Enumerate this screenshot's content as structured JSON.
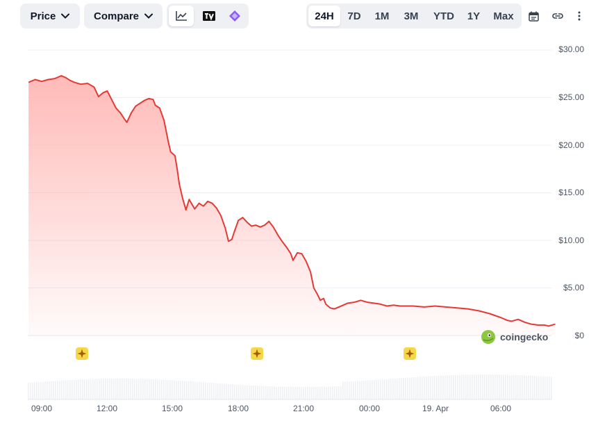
{
  "toolbar": {
    "price_label": "Price",
    "compare_label": "Compare",
    "chart_modes": [
      "line-chart-icon",
      "tradingview-icon",
      "candlestick-icon"
    ],
    "ranges": [
      "24H",
      "7D",
      "1M",
      "3M",
      "YTD",
      "1Y",
      "Max"
    ],
    "active_range": "24H",
    "extra_icons": [
      "calendar-icon",
      "link-icon",
      "more-options-icon"
    ]
  },
  "watermark": "coingecko",
  "colors": {
    "line": "#e53935",
    "fill_top": "#ffb3b0",
    "grid": "#eceff3",
    "event_marker": "#f7d74a"
  },
  "chart_data": {
    "type": "area",
    "title": "",
    "xlabel": "",
    "ylabel": "",
    "y_ticks": [
      "$30.00",
      "$25.00",
      "$20.00",
      "$15.00",
      "$10.00",
      "$5.00",
      "$0"
    ],
    "y_tick_values": [
      30,
      25,
      20,
      15,
      10,
      5,
      0
    ],
    "ylim": [
      0,
      30
    ],
    "x_ticks": [
      "09:00",
      "12:00",
      "15:00",
      "18:00",
      "21:00",
      "00:00",
      "19. Apr",
      "06:00"
    ],
    "x_tick_hours": [
      0,
      3,
      6,
      9,
      12,
      15,
      18,
      21
    ],
    "x_range_hours": [
      -0.6,
      23.5
    ],
    "x_unit": "hours from 09:00",
    "grid": true,
    "legend": "none",
    "series": [
      {
        "values": [
          [
            -0.6,
            26.6
          ],
          [
            -0.3,
            26.9
          ],
          [
            0.0,
            26.7
          ],
          [
            0.3,
            26.9
          ],
          [
            0.6,
            27.0
          ],
          [
            0.9,
            27.3
          ],
          [
            1.1,
            27.1
          ],
          [
            1.3,
            26.8
          ],
          [
            1.5,
            26.6
          ],
          [
            1.8,
            26.4
          ],
          [
            2.1,
            26.5
          ],
          [
            2.4,
            26.1
          ],
          [
            2.6,
            25.1
          ],
          [
            2.8,
            25.5
          ],
          [
            3.0,
            25.7
          ],
          [
            3.2,
            24.8
          ],
          [
            3.4,
            23.9
          ],
          [
            3.6,
            23.4
          ],
          [
            3.8,
            22.7
          ],
          [
            3.9,
            22.4
          ],
          [
            4.1,
            23.4
          ],
          [
            4.3,
            24.1
          ],
          [
            4.5,
            24.4
          ],
          [
            4.7,
            24.7
          ],
          [
            4.9,
            24.9
          ],
          [
            5.1,
            24.8
          ],
          [
            5.2,
            24.2
          ],
          [
            5.4,
            23.9
          ],
          [
            5.6,
            22.6
          ],
          [
            5.8,
            20.3
          ],
          [
            5.9,
            19.3
          ],
          [
            6.1,
            18.9
          ],
          [
            6.2,
            17.5
          ],
          [
            6.3,
            15.9
          ],
          [
            6.45,
            14.4
          ],
          [
            6.6,
            13.2
          ],
          [
            6.75,
            14.3
          ],
          [
            6.9,
            13.7
          ],
          [
            7.0,
            13.3
          ],
          [
            7.2,
            13.9
          ],
          [
            7.4,
            13.6
          ],
          [
            7.6,
            14.1
          ],
          [
            7.8,
            13.9
          ],
          [
            8.0,
            13.4
          ],
          [
            8.2,
            12.6
          ],
          [
            8.4,
            11.3
          ],
          [
            8.55,
            9.9
          ],
          [
            8.7,
            10.1
          ],
          [
            8.8,
            10.8
          ],
          [
            9.0,
            12.1
          ],
          [
            9.2,
            12.4
          ],
          [
            9.4,
            11.9
          ],
          [
            9.6,
            11.5
          ],
          [
            9.8,
            11.6
          ],
          [
            10.0,
            11.4
          ],
          [
            10.2,
            11.6
          ],
          [
            10.4,
            12.0
          ],
          [
            10.6,
            11.4
          ],
          [
            10.8,
            10.6
          ],
          [
            11.0,
            9.9
          ],
          [
            11.2,
            9.3
          ],
          [
            11.4,
            8.6
          ],
          [
            11.5,
            7.9
          ],
          [
            11.7,
            8.7
          ],
          [
            11.9,
            8.6
          ],
          [
            12.1,
            7.8
          ],
          [
            12.3,
            6.7
          ],
          [
            12.45,
            5.0
          ],
          [
            12.6,
            4.4
          ],
          [
            12.75,
            3.7
          ],
          [
            12.9,
            3.9
          ],
          [
            13.0,
            3.3
          ],
          [
            13.2,
            2.9
          ],
          [
            13.4,
            2.8
          ],
          [
            13.6,
            3.0
          ],
          [
            13.8,
            3.2
          ],
          [
            14.0,
            3.4
          ],
          [
            14.3,
            3.5
          ],
          [
            14.6,
            3.7
          ],
          [
            14.9,
            3.5
          ],
          [
            15.2,
            3.4
          ],
          [
            15.5,
            3.3
          ],
          [
            15.8,
            3.1
          ],
          [
            16.1,
            3.2
          ],
          [
            16.4,
            3.1
          ],
          [
            16.7,
            3.1
          ],
          [
            17.0,
            3.1
          ],
          [
            17.5,
            3.0
          ],
          [
            18.0,
            3.1
          ],
          [
            18.5,
            3.0
          ],
          [
            19.0,
            2.9
          ],
          [
            19.5,
            2.8
          ],
          [
            20.0,
            2.6
          ],
          [
            20.5,
            2.3
          ],
          [
            21.0,
            1.9
          ],
          [
            21.3,
            1.6
          ],
          [
            21.5,
            1.5
          ],
          [
            21.8,
            1.7
          ],
          [
            22.1,
            1.4
          ],
          [
            22.4,
            1.2
          ],
          [
            22.7,
            1.1
          ],
          [
            23.0,
            1.1
          ],
          [
            23.2,
            1.0
          ],
          [
            23.5,
            1.2
          ]
        ]
      }
    ],
    "event_markers_hours": [
      1.5,
      9.2,
      16.2
    ]
  }
}
